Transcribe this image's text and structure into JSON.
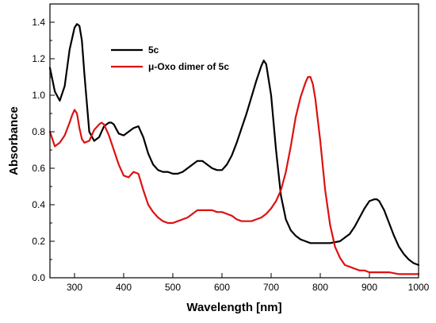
{
  "chart_data": {
    "type": "line",
    "xlabel": "Wavelength [nm]",
    "ylabel": "Absorbance",
    "xlim": [
      250,
      1000
    ],
    "ylim": [
      0.0,
      1.5
    ],
    "x_major_ticks": [
      300,
      400,
      500,
      600,
      700,
      800,
      900,
      1000
    ],
    "y_major_ticks": [
      0.0,
      0.2,
      0.4,
      0.6,
      0.8,
      1.0,
      1.2,
      1.4
    ],
    "grid": false,
    "legend_position": "top-left",
    "series": [
      {
        "name": "5c",
        "color": "#000000",
        "x": [
          250,
          260,
          270,
          280,
          290,
          300,
          305,
          310,
          315,
          320,
          330,
          340,
          350,
          360,
          370,
          375,
          380,
          390,
          400,
          410,
          420,
          430,
          440,
          450,
          460,
          470,
          480,
          490,
          500,
          510,
          520,
          530,
          540,
          550,
          560,
          570,
          580,
          590,
          600,
          610,
          620,
          630,
          640,
          650,
          660,
          670,
          680,
          685,
          690,
          700,
          710,
          720,
          730,
          740,
          750,
          760,
          770,
          780,
          790,
          800,
          820,
          840,
          860,
          870,
          880,
          890,
          900,
          910,
          915,
          920,
          930,
          940,
          950,
          960,
          970,
          980,
          990,
          1000
        ],
        "y": [
          1.15,
          1.02,
          0.97,
          1.05,
          1.25,
          1.37,
          1.39,
          1.38,
          1.3,
          1.12,
          0.8,
          0.75,
          0.77,
          0.83,
          0.85,
          0.85,
          0.84,
          0.79,
          0.78,
          0.8,
          0.82,
          0.83,
          0.77,
          0.68,
          0.62,
          0.59,
          0.58,
          0.58,
          0.57,
          0.57,
          0.58,
          0.6,
          0.62,
          0.64,
          0.64,
          0.62,
          0.6,
          0.59,
          0.59,
          0.62,
          0.67,
          0.74,
          0.82,
          0.9,
          0.99,
          1.08,
          1.16,
          1.19,
          1.17,
          1.0,
          0.7,
          0.45,
          0.32,
          0.26,
          0.23,
          0.21,
          0.2,
          0.19,
          0.19,
          0.19,
          0.19,
          0.2,
          0.24,
          0.28,
          0.33,
          0.38,
          0.42,
          0.43,
          0.43,
          0.42,
          0.37,
          0.3,
          0.23,
          0.17,
          0.13,
          0.1,
          0.08,
          0.07
        ]
      },
      {
        "name": "μ-Oxo dimer of 5c",
        "color": "#dd1111",
        "x": [
          250,
          260,
          270,
          280,
          290,
          295,
          300,
          305,
          310,
          315,
          320,
          330,
          340,
          350,
          355,
          360,
          370,
          380,
          390,
          400,
          410,
          420,
          430,
          440,
          450,
          460,
          470,
          480,
          490,
          500,
          510,
          520,
          530,
          540,
          550,
          560,
          570,
          580,
          590,
          600,
          610,
          620,
          630,
          640,
          650,
          660,
          670,
          680,
          690,
          700,
          710,
          720,
          730,
          740,
          750,
          760,
          770,
          775,
          780,
          785,
          790,
          800,
          810,
          820,
          830,
          840,
          850,
          860,
          870,
          880,
          890,
          900,
          920,
          940,
          960,
          980,
          1000
        ],
        "y": [
          0.8,
          0.72,
          0.74,
          0.78,
          0.85,
          0.89,
          0.92,
          0.9,
          0.82,
          0.76,
          0.74,
          0.75,
          0.81,
          0.84,
          0.85,
          0.84,
          0.78,
          0.7,
          0.62,
          0.56,
          0.55,
          0.58,
          0.57,
          0.48,
          0.4,
          0.36,
          0.33,
          0.31,
          0.3,
          0.3,
          0.31,
          0.32,
          0.33,
          0.35,
          0.37,
          0.37,
          0.37,
          0.37,
          0.36,
          0.36,
          0.35,
          0.34,
          0.32,
          0.31,
          0.31,
          0.31,
          0.32,
          0.33,
          0.35,
          0.38,
          0.42,
          0.48,
          0.58,
          0.72,
          0.88,
          0.99,
          1.07,
          1.1,
          1.1,
          1.06,
          0.98,
          0.75,
          0.48,
          0.29,
          0.17,
          0.11,
          0.07,
          0.06,
          0.05,
          0.04,
          0.04,
          0.03,
          0.03,
          0.03,
          0.02,
          0.02,
          0.02
        ]
      }
    ]
  }
}
